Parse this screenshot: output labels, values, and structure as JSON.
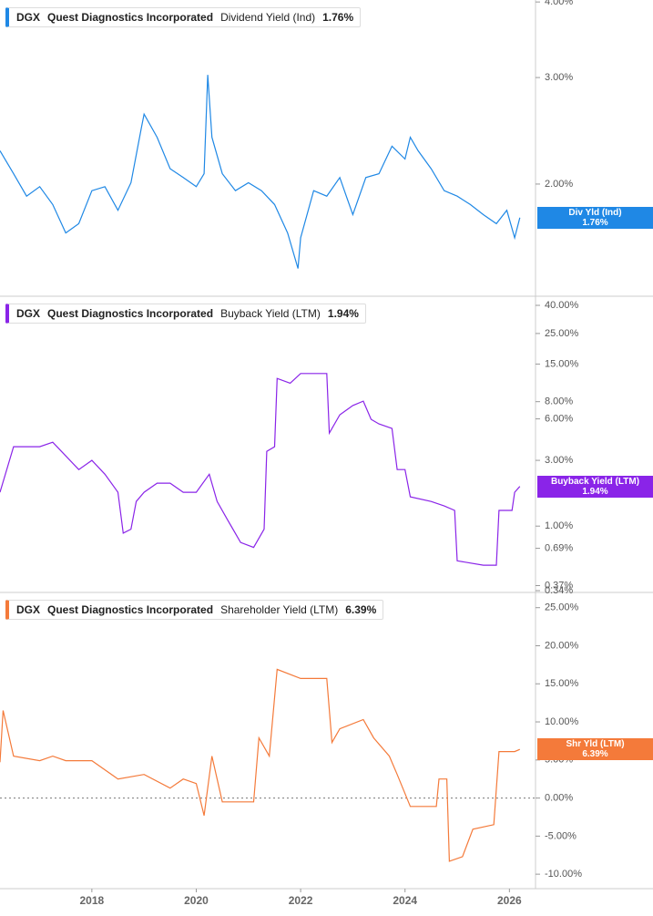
{
  "chart_data": [
    {
      "type": "line",
      "ticker": "DGX",
      "company": "Quest Diagnostics Incorporated",
      "metric": "Dividend Yield (Ind)",
      "tag_name": "Div Yld (Ind)",
      "current": {
        "value": 1.76,
        "label": "1.76%"
      },
      "color": "#1f88e5",
      "log_scale": true,
      "xlim": [
        2016.24,
        2026.5
      ],
      "ylim": [
        1.305,
        4.03
      ],
      "yticks": [
        {
          "value": 4,
          "label": "4.00%"
        },
        {
          "value": 3,
          "label": "3.00%"
        },
        {
          "value": 2,
          "label": "2.00%"
        }
      ],
      "x": [
        2016.24,
        2016.5,
        2016.75,
        2017.0,
        2017.25,
        2017.5,
        2017.75,
        2018.0,
        2018.25,
        2018.5,
        2018.75,
        2018.95,
        2019.0,
        2019.25,
        2019.5,
        2019.75,
        2020.0,
        2020.15,
        2020.22,
        2020.3,
        2020.5,
        2020.75,
        2021.0,
        2021.25,
        2021.5,
        2021.75,
        2021.95,
        2022.0,
        2022.25,
        2022.5,
        2022.75,
        2023.0,
        2023.25,
        2023.5,
        2023.75,
        2024.0,
        2024.1,
        2024.25,
        2024.5,
        2024.75,
        2025.0,
        2025.25,
        2025.5,
        2025.75,
        2025.95,
        2026.1,
        2026.2
      ],
      "values": [
        2.27,
        2.08,
        1.91,
        1.98,
        1.85,
        1.66,
        1.72,
        1.95,
        1.98,
        1.81,
        2.01,
        2.48,
        2.61,
        2.39,
        2.12,
        2.05,
        1.98,
        2.08,
        3.03,
        2.39,
        2.08,
        1.95,
        2.01,
        1.95,
        1.85,
        1.66,
        1.45,
        1.63,
        1.95,
        1.91,
        2.05,
        1.78,
        2.05,
        2.08,
        2.31,
        2.2,
        2.39,
        2.27,
        2.12,
        1.95,
        1.91,
        1.85,
        1.78,
        1.72,
        1.81,
        1.63,
        1.76
      ]
    },
    {
      "type": "line",
      "ticker": "DGX",
      "company": "Quest Diagnostics Incorporated",
      "metric": "Buyback Yield (LTM)",
      "tag_name": "Buyback Yield (LTM)",
      "current": {
        "value": 1.94,
        "label": "1.94%"
      },
      "color": "#8a24e8",
      "log_scale": true,
      "xlim": [
        2016.24,
        2026.5
      ],
      "ylim": [
        0.33,
        46.6
      ],
      "yticks": [
        {
          "value": 40,
          "label": "40.00%"
        },
        {
          "value": 25,
          "label": "25.00%"
        },
        {
          "value": 15,
          "label": "15.00%"
        },
        {
          "value": 8,
          "label": "8.00%"
        },
        {
          "value": 6,
          "label": "6.00%"
        },
        {
          "value": 3,
          "label": "3.00%"
        },
        {
          "value": 1,
          "label": "1.00%"
        },
        {
          "value": 0.69,
          "label": "0.69%"
        },
        {
          "value": 0.37,
          "label": "0.37%"
        },
        {
          "value": 0.34,
          "label": "0.34%"
        }
      ],
      "x": [
        2016.24,
        2016.5,
        2017.0,
        2017.25,
        2017.5,
        2017.75,
        2018.0,
        2018.25,
        2018.5,
        2018.6,
        2018.75,
        2018.85,
        2019.0,
        2019.25,
        2019.5,
        2019.75,
        2020.0,
        2020.25,
        2020.4,
        2020.6,
        2020.85,
        2021.1,
        2021.3,
        2021.35,
        2021.5,
        2021.55,
        2021.8,
        2022.0,
        2022.25,
        2022.5,
        2022.55,
        2022.75,
        2023.0,
        2023.2,
        2023.35,
        2023.5,
        2023.75,
        2023.85,
        2024.0,
        2024.1,
        2024.5,
        2024.75,
        2024.95,
        2025.0,
        2025.5,
        2025.75,
        2025.8,
        2026.05,
        2026.1,
        2026.2
      ],
      "values": [
        1.76,
        3.77,
        3.77,
        4.06,
        3.23,
        2.57,
        3.0,
        2.38,
        1.76,
        0.89,
        0.95,
        1.51,
        1.76,
        2.05,
        2.05,
        1.76,
        1.76,
        2.38,
        1.51,
        1.11,
        0.76,
        0.7,
        0.95,
        3.49,
        3.77,
        11.8,
        10.9,
        12.8,
        12.8,
        12.8,
        4.73,
        6.42,
        7.5,
        8.07,
        5.95,
        5.52,
        5.11,
        2.57,
        2.57,
        1.63,
        1.51,
        1.4,
        1.3,
        0.56,
        0.52,
        0.52,
        1.3,
        1.3,
        1.76,
        1.94
      ]
    },
    {
      "type": "line",
      "ticker": "DGX",
      "company": "Quest Diagnostics Incorporated",
      "metric": "Shareholder Yield (LTM)",
      "tag_name": "Shr Yld (LTM)",
      "current": {
        "value": 6.39,
        "label": "6.39%"
      },
      "color": "#f47a3a",
      "log_scale": false,
      "zero_line": true,
      "xlim": [
        2016.24,
        2026.5
      ],
      "ylim": [
        -11.9,
        27
      ],
      "yticks": [
        {
          "value": 25,
          "label": "25.00%"
        },
        {
          "value": 20,
          "label": "20.00%"
        },
        {
          "value": 15,
          "label": "15.00%"
        },
        {
          "value": 10,
          "label": "10.00%"
        },
        {
          "value": 5,
          "label": "5.00%"
        },
        {
          "value": 0,
          "label": "0.00%"
        },
        {
          "value": -5,
          "label": "-5.00%"
        },
        {
          "value": -10,
          "label": "-10.00%"
        }
      ],
      "xticks": [
        2018,
        2020,
        2022,
        2024,
        2026
      ],
      "x": [
        2016.24,
        2016.3,
        2016.5,
        2017.0,
        2017.25,
        2017.5,
        2018.0,
        2018.5,
        2019.0,
        2019.5,
        2019.75,
        2020.0,
        2020.15,
        2020.3,
        2020.5,
        2021.1,
        2021.2,
        2021.4,
        2021.55,
        2022.0,
        2022.5,
        2022.6,
        2022.75,
        2023.2,
        2023.4,
        2023.7,
        2023.85,
        2024.1,
        2024.6,
        2024.65,
        2024.8,
        2024.85,
        2025.1,
        2025.3,
        2025.7,
        2025.8,
        2026.1,
        2026.2
      ],
      "values": [
        4.7,
        11.5,
        5.5,
        4.9,
        5.5,
        4.9,
        4.9,
        2.5,
        3.1,
        1.3,
        2.5,
        1.9,
        -2.3,
        5.5,
        -0.5,
        -0.5,
        7.9,
        5.5,
        16.9,
        15.7,
        15.7,
        7.3,
        9.1,
        10.3,
        7.9,
        5.5,
        3.1,
        -1.1,
        -1.1,
        2.5,
        2.5,
        -8.3,
        -7.7,
        -4.1,
        -3.5,
        6.1,
        6.1,
        6.39
      ]
    }
  ]
}
